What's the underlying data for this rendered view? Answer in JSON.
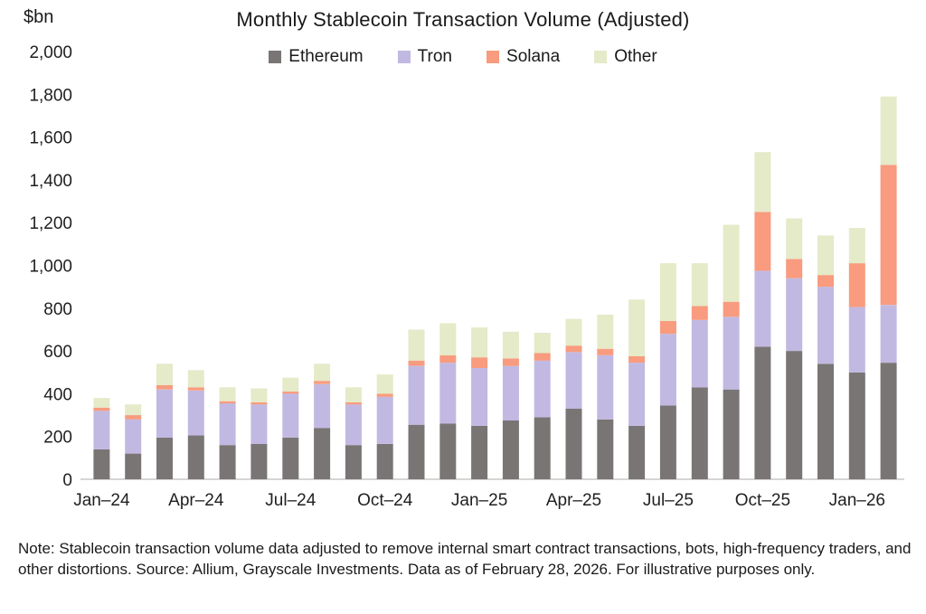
{
  "note": "Note: Stablecoin transaction volume data adjusted to remove internal smart contract transactions, bots, high-frequency traders, and other distortions. Source: Allium, Grayscale Investments. Data as of February 28, 2026. For illustrative purposes only.",
  "chart_data": {
    "type": "bar",
    "stacked": true,
    "title": "Monthly Stablecoin Transaction Volume (Adjusted)",
    "y_unit": "$bn",
    "ylim": [
      0,
      2000
    ],
    "ytick_step": 200,
    "x_tick_every": 3,
    "grid": false,
    "legend_position": "top-center",
    "categories": [
      "Jan–24",
      "Feb–24",
      "Mar–24",
      "Apr–24",
      "May–24",
      "Jun–24",
      "Jul–24",
      "Aug–24",
      "Sep–24",
      "Oct–24",
      "Nov–24",
      "Dec–24",
      "Jan–25",
      "Feb–25",
      "Mar–25",
      "Apr–25",
      "May–25",
      "Jun–25",
      "Jul–25",
      "Aug–25",
      "Sep–25",
      "Oct–25",
      "Nov–25",
      "Dec–25",
      "Jan–26",
      "Feb–26"
    ],
    "series": [
      {
        "name": "Ethereum",
        "color": "#7a7575",
        "values": [
          140,
          120,
          195,
          205,
          160,
          165,
          195,
          240,
          160,
          165,
          255,
          260,
          250,
          275,
          290,
          330,
          280,
          250,
          345,
          430,
          420,
          620,
          600,
          540,
          500,
          545
        ]
      },
      {
        "name": "Tron",
        "color": "#c1b9e2",
        "values": [
          180,
          160,
          225,
          210,
          195,
          185,
          205,
          205,
          190,
          220,
          275,
          285,
          270,
          255,
          265,
          265,
          300,
          295,
          335,
          315,
          340,
          355,
          340,
          360,
          305,
          270
        ]
      },
      {
        "name": "Solana",
        "color": "#f89b7e",
        "values": [
          15,
          20,
          20,
          15,
          10,
          10,
          10,
          15,
          10,
          15,
          25,
          35,
          50,
          35,
          35,
          30,
          30,
          30,
          60,
          65,
          70,
          275,
          90,
          55,
          205,
          655
        ]
      },
      {
        "name": "Other",
        "color": "#e5eac8",
        "values": [
          45,
          50,
          100,
          80,
          65,
          65,
          65,
          80,
          70,
          90,
          145,
          150,
          140,
          125,
          95,
          125,
          160,
          265,
          270,
          200,
          360,
          280,
          190,
          185,
          165,
          320
        ]
      }
    ]
  }
}
